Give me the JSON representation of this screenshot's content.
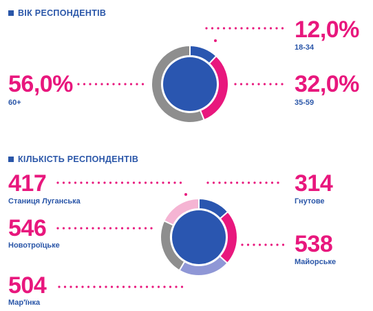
{
  "colors": {
    "accent": "#e8177d",
    "title_blue": "#2a56a8",
    "donut_blue": "#2a56b0",
    "gray": "#8e8e8e",
    "light_blue": "#8f97d6",
    "light_pink": "#f5b4d3"
  },
  "chart_data": [
    {
      "type": "pie",
      "title": "ВІК РЕСПОНДЕНТІВ",
      "unit": "%",
      "slices": [
        {
          "label": "18-34",
          "value": 12.0,
          "display": "12,0%",
          "color": "#2a56b0"
        },
        {
          "label": "35-59",
          "value": 32.0,
          "display": "32,0%",
          "color": "#e8177d"
        },
        {
          "label": "60+",
          "value": 56.0,
          "display": "56,0%",
          "color": "#8e8e8e"
        }
      ]
    },
    {
      "type": "pie",
      "title": "КІЛЬКІСТЬ РЕСПОНДЕНТІВ",
      "slices": [
        {
          "label": "Гнутове",
          "value": 314,
          "display": "314",
          "color": "#2a56b0"
        },
        {
          "label": "Майорське",
          "value": 538,
          "display": "538",
          "color": "#e8177d"
        },
        {
          "label": "Мар'їнка",
          "value": 504,
          "display": "504",
          "color": "#8f97d6"
        },
        {
          "label": "Новотроїцьке",
          "value": 546,
          "display": "546",
          "color": "#8e8e8e"
        },
        {
          "label": "Станиця Луганська",
          "value": 417,
          "display": "417",
          "color": "#f5b4d3"
        }
      ]
    }
  ]
}
